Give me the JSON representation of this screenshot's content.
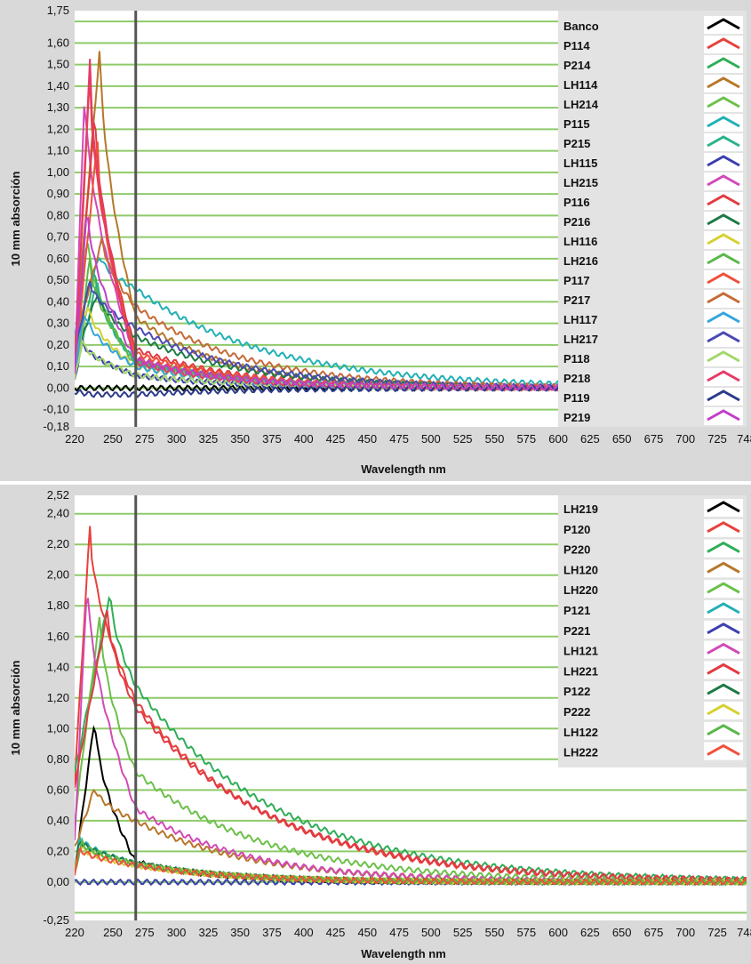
{
  "colors": {
    "panel_bg": "#d9d9d9",
    "plot_bg": "#ffffff",
    "gridline": "#8fca6a",
    "marker_line": "#555555",
    "legend_bg": "#e3e3e3"
  },
  "chart_data": [
    {
      "type": "line",
      "title": "",
      "xlabel": "Wavelength nm",
      "ylabel": "10 mm absorción",
      "xlim": [
        220,
        748
      ],
      "x_tick_labels": [
        "220",
        "250",
        "275",
        "300",
        "325",
        "350",
        "375",
        "400",
        "425",
        "450",
        "475",
        "500",
        "525",
        "550",
        "575",
        "600",
        "625",
        "650",
        "675",
        "700",
        "725",
        "748"
      ],
      "ylim": [
        -0.18,
        1.75
      ],
      "y_tick_labels": [
        "1,75",
        "1,60",
        "1,50",
        "1,40",
        "1,30",
        "1,20",
        "1,10",
        "1,00",
        "0,90",
        "0,80",
        "0,70",
        "0,60",
        "0,50",
        "0,40",
        "0,30",
        "0,20",
        "0,10",
        "0,00",
        "-0,10",
        "-0,18"
      ],
      "gridlines_y": [
        1.7,
        1.6,
        1.5,
        1.4,
        1.3,
        1.2,
        1.1,
        1.0,
        0.9,
        0.8,
        0.7,
        0.6,
        0.5,
        0.4,
        0.3,
        0.2,
        0.1,
        0.0,
        -0.1
      ],
      "marker_x": 268,
      "grid": true,
      "legend_position": "right",
      "series": [
        {
          "name": "Banco",
          "color": "#000000",
          "peak_x": 228,
          "peak": 0.0,
          "tail": 0.0,
          "decay": 60
        },
        {
          "name": "P114",
          "color": "#e8413c",
          "peak_x": 232,
          "peak": 1.45,
          "tail": 0.14,
          "decay": 55
        },
        {
          "name": "P214",
          "color": "#2fae58",
          "peak_x": 236,
          "peak": 0.55,
          "tail": 0.12,
          "decay": 60
        },
        {
          "name": "LH114",
          "color": "#b7772a",
          "peak_x": 240,
          "peak": 1.59,
          "tail": 0.33,
          "decay": 50
        },
        {
          "name": "LH214",
          "color": "#6cc04a",
          "peak_x": 230,
          "peak": 0.72,
          "tail": 0.1,
          "decay": 55
        },
        {
          "name": "P115",
          "color": "#22b0b5",
          "peak_x": 240,
          "peak": 0.62,
          "tail": 0.46,
          "decay": 75
        },
        {
          "name": "P215",
          "color": "#2bb28a",
          "peak_x": 238,
          "peak": 0.5,
          "tail": 0.12,
          "decay": 60
        },
        {
          "name": "LH115",
          "color": "#3b3fae",
          "peak_x": 226,
          "peak": 0.22,
          "tail": 0.06,
          "decay": 50
        },
        {
          "name": "LH215",
          "color": "#d24ab8",
          "peak_x": 228,
          "peak": 1.4,
          "tail": 0.14,
          "decay": 45
        },
        {
          "name": "P116",
          "color": "#e23a42",
          "peak_x": 236,
          "peak": 1.3,
          "tail": 0.18,
          "decay": 55
        },
        {
          "name": "P216",
          "color": "#1e7a45",
          "peak_x": 238,
          "peak": 0.44,
          "tail": 0.24,
          "decay": 60
        },
        {
          "name": "LH116",
          "color": "#d6d030",
          "peak_x": 230,
          "peak": 0.4,
          "tail": 0.1,
          "decay": 55
        },
        {
          "name": "LH216",
          "color": "#59b84a",
          "peak_x": 232,
          "peak": 0.6,
          "tail": 0.12,
          "decay": 55
        },
        {
          "name": "P117",
          "color": "#f0503a",
          "peak_x": 238,
          "peak": 1.15,
          "tail": 0.16,
          "decay": 55
        },
        {
          "name": "P217",
          "color": "#c66a38",
          "peak_x": 242,
          "peak": 0.7,
          "tail": 0.38,
          "decay": 60
        },
        {
          "name": "LH117",
          "color": "#34a5dc",
          "peak_x": 228,
          "peak": 0.36,
          "tail": 0.1,
          "decay": 55
        },
        {
          "name": "LH217",
          "color": "#4c4ab4",
          "peak_x": 232,
          "peak": 0.5,
          "tail": 0.28,
          "decay": 60
        },
        {
          "name": "P118",
          "color": "#a4d66c",
          "peak_x": 226,
          "peak": 0.22,
          "tail": 0.06,
          "decay": 60
        },
        {
          "name": "P218",
          "color": "#e63b6a",
          "peak_x": 232,
          "peak": 1.52,
          "tail": 0.12,
          "decay": 50
        },
        {
          "name": "P119",
          "color": "#2c3a8a",
          "peak_x": 234,
          "peak": -0.03,
          "tail": -0.03,
          "decay": 60
        },
        {
          "name": "P219",
          "color": "#c13fc7",
          "peak_x": 230,
          "peak": 0.85,
          "tail": 0.13,
          "decay": 55
        }
      ]
    },
    {
      "type": "line",
      "title": "",
      "xlabel": "Wavelength nm",
      "ylabel": "10 mm absorción",
      "xlim": [
        220,
        748
      ],
      "x_tick_labels": [
        "220",
        "250",
        "275",
        "300",
        "325",
        "350",
        "375",
        "400",
        "425",
        "450",
        "475",
        "500",
        "525",
        "550",
        "575",
        "600",
        "625",
        "650",
        "675",
        "700",
        "725",
        "748"
      ],
      "ylim": [
        -0.25,
        2.52
      ],
      "y_tick_labels": [
        "2,52",
        "2,40",
        "2,20",
        "2,00",
        "1,80",
        "1,60",
        "1,40",
        "1,20",
        "1,00",
        "0,80",
        "0,60",
        "0,40",
        "0,20",
        "0,00",
        "-0,25"
      ],
      "gridlines_y": [
        2.4,
        2.2,
        2.0,
        1.8,
        1.6,
        1.4,
        1.2,
        1.0,
        0.8,
        0.6,
        0.4,
        0.2,
        0.0,
        -0.2
      ],
      "marker_x": 268,
      "grid": true,
      "legend_position": "top-right",
      "series": [
        {
          "name": "LH219",
          "color": "#000000",
          "peak_x": 236,
          "peak": 1.08,
          "tail": 0.13,
          "decay": 45
        },
        {
          "name": "P120",
          "color": "#e8413c",
          "peak_x": 232,
          "peak": 2.32,
          "tail": 1.18,
          "decay": 75
        },
        {
          "name": "P220",
          "color": "#2fae58",
          "peak_x": 248,
          "peak": 1.9,
          "tail": 1.28,
          "decay": 80
        },
        {
          "name": "LH120",
          "color": "#b7772a",
          "peak_x": 236,
          "peak": 0.62,
          "tail": 0.4,
          "decay": 65
        },
        {
          "name": "LH220",
          "color": "#6cc04a",
          "peak_x": 240,
          "peak": 1.75,
          "tail": 0.72,
          "decay": 70
        },
        {
          "name": "P121",
          "color": "#22b0b5",
          "peak_x": 224,
          "peak": 0.3,
          "tail": 0.12,
          "decay": 55
        },
        {
          "name": "P221",
          "color": "#3b3fae",
          "peak_x": 224,
          "peak": 0.0,
          "tail": 0.0,
          "decay": 60
        },
        {
          "name": "LH121",
          "color": "#d24ab8",
          "peak_x": 230,
          "peak": 2.0,
          "tail": 0.48,
          "decay": 60
        },
        {
          "name": "LH221",
          "color": "#e23a42",
          "peak_x": 246,
          "peak": 1.78,
          "tail": 1.14,
          "decay": 78
        },
        {
          "name": "P122",
          "color": "#1e7a45",
          "peak_x": 224,
          "peak": 0.28,
          "tail": 0.12,
          "decay": 55
        },
        {
          "name": "P222",
          "color": "#d6d030",
          "peak_x": 224,
          "peak": 0.24,
          "tail": 0.11,
          "decay": 55
        },
        {
          "name": "LH122",
          "color": "#59b84a",
          "peak_x": 226,
          "peak": 0.26,
          "tail": 0.12,
          "decay": 55
        },
        {
          "name": "LH222",
          "color": "#f0503a",
          "peak_x": 224,
          "peak": 0.22,
          "tail": 0.11,
          "decay": 55
        }
      ]
    }
  ]
}
